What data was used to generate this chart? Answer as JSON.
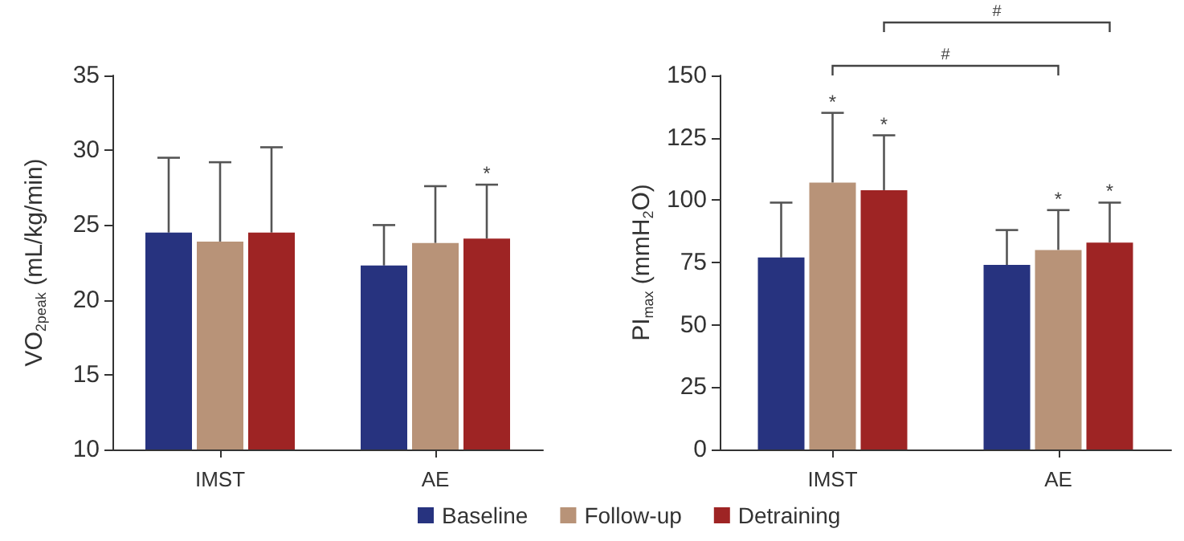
{
  "chart_data": [
    {
      "type": "bar",
      "ylabel": "VO$_{2peak}$ (mL/kg/min)",
      "categories": [
        "IMST",
        "AE"
      ],
      "series": [
        {
          "color": "#27337f",
          "values": [
            24.5,
            22.3
          ],
          "errors": [
            [
              24.5,
              29.5
            ],
            [
              22.3,
              25.0
            ]
          ]
        },
        {
          "color": "#b89378",
          "values": [
            23.9,
            23.8
          ],
          "errors": [
            [
              23.9,
              29.2
            ],
            [
              23.8,
              27.6
            ]
          ]
        },
        {
          "color": "#9e2424",
          "values": [
            24.5,
            24.1
          ],
          "errors": [
            [
              24.5,
              30.2
            ],
            [
              24.1,
              27.7
            ]
          ]
        }
      ],
      "ylim": [
        10,
        35
      ],
      "yticks": [
        10,
        15,
        20,
        25,
        30,
        35
      ],
      "grid": false,
      "legend": false,
      "annotations": [
        {
          "text": "*",
          "x": "AE",
          "y": 27.7
        }
      ]
    },
    {
      "type": "bar",
      "ylabel": "PI$_{max}$ (mmH$_{2}$O)",
      "categories": [
        "IMST",
        "AE"
      ],
      "series": [
        {
          "name": "Baseline",
          "color": "#27337f",
          "values": [
            77,
            74
          ],
          "errors": [
            [
              77,
              99
            ],
            [
              74,
              88
            ]
          ]
        },
        {
          "name": "Follow-up",
          "color": "#b89378",
          "values": [
            107,
            80
          ],
          "errors": [
            [
              107,
              135
            ],
            [
              80,
              96
            ]
          ]
        },
        {
          "name": "Detraining",
          "color": "#9e2424",
          "values": [
            104,
            83
          ],
          "errors": [
            [
              104,
              126
            ],
            [
              83,
              99
            ]
          ]
        }
      ],
      "ylim": [
        0,
        150
      ],
      "yticks": [
        0,
        25,
        50,
        75,
        100,
        125,
        150
      ],
      "grid": false,
      "legend": "bottom",
      "annotations": [
        {
          "text": "*",
          "x": "IMST",
          "y": 135
        },
        {
          "text": "*",
          "x": "IMST",
          "y": 126
        },
        {
          "text": "*",
          "x": "AE",
          "y": 96
        },
        {
          "text": "*",
          "x": "AE",
          "y": 99
        },
        "#",
        "#"
      ]
    }
  ]
}
